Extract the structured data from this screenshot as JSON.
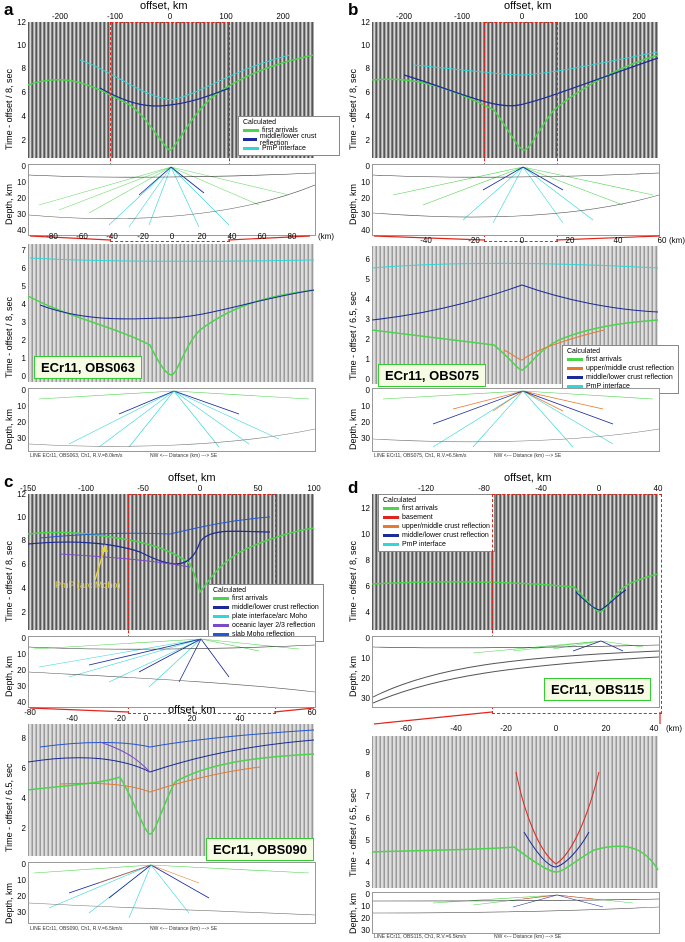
{
  "panels": {
    "a": {
      "letter": "a",
      "offset_title": "offset, km",
      "top_ticks": [
        "-200",
        "-100",
        "0",
        "100",
        "200"
      ],
      "y_label": "Time - offset / 8, sec",
      "y_ticks": [
        "12",
        "10",
        "8",
        "6",
        "4",
        "2"
      ],
      "legend": {
        "header": "Calculated",
        "items": [
          {
            "label": "first arrivals",
            "color": "#4cd44c"
          },
          {
            "label": "middle/lower crust reflection",
            "color": "#1b2a9c"
          },
          {
            "label": "PmP interface",
            "color": "#31d6d6"
          }
        ]
      },
      "depth_label": "Depth, km",
      "depth_ticks": [
        "0",
        "10",
        "20",
        "30",
        "40"
      ],
      "zoom_ticks": [
        "-80",
        "-60",
        "-40",
        "-20",
        "0",
        "20",
        "40",
        "60",
        "80"
      ],
      "zoom_unit": "(km)",
      "zoom_y_label": "Time - offset / 8, sec",
      "zoom_y_ticks": [
        "7",
        "6",
        "5",
        "4",
        "3",
        "2",
        "1",
        "0"
      ],
      "station": "ECr11, OBS063",
      "zoom_depth_ticks": [
        "0",
        "10",
        "20",
        "30"
      ],
      "caption": "LINE ECr11, OBS063, Ch1, R.V.=8.0km/s",
      "axis_caption": "NW <--- Distance (km) ---> SE"
    },
    "b": {
      "letter": "b",
      "offset_title": "offset, km",
      "top_ticks": [
        "-200",
        "-100",
        "0",
        "100",
        "200"
      ],
      "y_label": "Time - offset / 8, sec",
      "y_ticks": [
        "12",
        "10",
        "8",
        "6",
        "4",
        "2"
      ],
      "depth_label": "Depth, km",
      "depth_ticks": [
        "0",
        "10",
        "20",
        "30",
        "40"
      ],
      "zoom_ticks": [
        "-40",
        "-20",
        "0",
        "20",
        "40",
        "60"
      ],
      "zoom_unit": "(km)",
      "zoom_y_label": "Time - offset / 6.5, sec",
      "zoom_y_ticks": [
        "6",
        "5",
        "4",
        "3",
        "2",
        "1",
        "0"
      ],
      "station": "ECr11, OBS075",
      "legend": {
        "header": "Calculated",
        "items": [
          {
            "label": "first arrivals",
            "color": "#4cd44c"
          },
          {
            "label": "upper/middle crust reflection",
            "color": "#e67a2e"
          },
          {
            "label": "middle/lower crust reflection",
            "color": "#1b2a9c"
          },
          {
            "label": "PmP interface",
            "color": "#31d6d6"
          }
        ]
      },
      "zoom_depth_ticks": [
        "0",
        "10",
        "20",
        "30"
      ],
      "caption": "LINE ECr11, OBS075, Ch1, R.V.=6.5km/s",
      "axis_caption": "NW <--- Distance (km) ---> SE"
    },
    "c": {
      "letter": "c",
      "offset_title": "offset, km",
      "top_ticks": [
        "-150",
        "-100",
        "-50",
        "0",
        "50",
        "100"
      ],
      "y_label": "Time - offset / 8, sec",
      "y_ticks": [
        "12",
        "10",
        "8",
        "6",
        "4",
        "2"
      ],
      "annotation": "PmP (arc Moho)",
      "legend": {
        "header": "Calculated",
        "items": [
          {
            "label": "first arrivals",
            "color": "#4cd44c"
          },
          {
            "label": "middle/lower crust reflection",
            "color": "#1b2a9c"
          },
          {
            "label": "plate interface/arc Moho",
            "color": "#31d6d6"
          },
          {
            "label": "oceanic layer 2/3 reflection",
            "color": "#7b4ac8"
          },
          {
            "label": "slab Moho reflection",
            "color": "#2356d8"
          }
        ]
      },
      "depth_label": "Depth, km",
      "depth_ticks": [
        "0",
        "10",
        "20",
        "30",
        "40"
      ],
      "zoom_title": "offset, km",
      "zoom_ticks": [
        "-80",
        "-40",
        "-20",
        "0",
        "20",
        "40",
        "60"
      ],
      "zoom_y_label": "Time - offset / 6.5, sec",
      "zoom_y_ticks": [
        "8",
        "6",
        "4",
        "2"
      ],
      "station": "ECr11, OBS090",
      "zoom_depth_ticks": [
        "0",
        "10",
        "20",
        "30"
      ],
      "caption": "LINE ECr11, OBS090, Ch1, R.V.=6.5km/s",
      "axis_caption": "NW <--- Distance (km) ---> SE"
    },
    "d": {
      "letter": "d",
      "offset_title": "offset, km",
      "top_ticks": [
        "-120",
        "-80",
        "-40",
        "0",
        "40"
      ],
      "y_label": "Time - offset / 8, sec",
      "y_ticks": [
        "12",
        "10",
        "8",
        "6",
        "4"
      ],
      "legend": {
        "header": "Calculated",
        "items": [
          {
            "label": "first arrivals",
            "color": "#4cd44c"
          },
          {
            "label": "basement",
            "color": "#e0261b"
          },
          {
            "label": "upper/middle crust reflection",
            "color": "#e67a2e"
          },
          {
            "label": "middle/lower crust reflection",
            "color": "#1b2a9c"
          },
          {
            "label": "PmP interface",
            "color": "#31d6d6"
          }
        ]
      },
      "depth_label": "Depth, km",
      "depth_ticks": [
        "0",
        "10",
        "20",
        "30"
      ],
      "station": "ECr11, OBS115",
      "zoom_ticks": [
        "-60",
        "-40",
        "-20",
        "0",
        "20",
        "40"
      ],
      "zoom_unit": "(km)",
      "zoom_y_label": "Time - offset / 6.5, sec",
      "zoom_y_ticks": [
        "9",
        "8",
        "7",
        "6",
        "5",
        "4",
        "3"
      ],
      "zoom_depth_ticks": [
        "0",
        "10",
        "20",
        "30"
      ],
      "caption": "LINE ECr11, OBS115, Ch1, R.V.=6.5km/s",
      "axis_caption": "NW <--- Distance (km) ---> SE"
    }
  }
}
